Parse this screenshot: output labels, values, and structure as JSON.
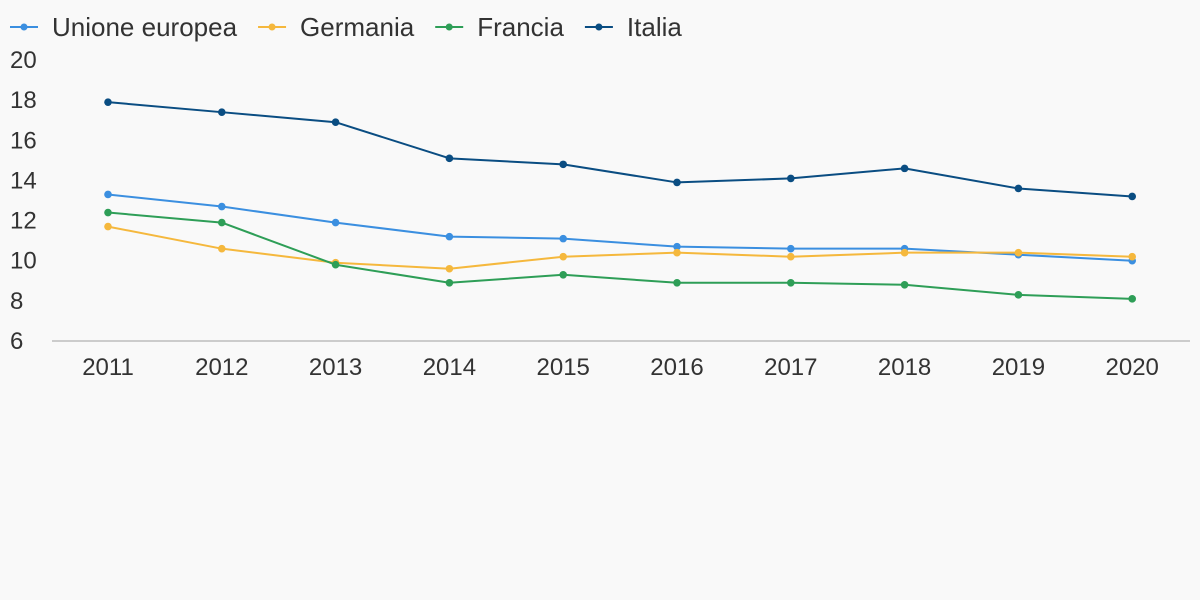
{
  "colors": {
    "background": "#f9f9f9",
    "axis": "#cccccc",
    "text": "#333333"
  },
  "chart_data": {
    "type": "line",
    "title": "",
    "xlabel": "",
    "ylabel": "",
    "categories": [
      "2011",
      "2012",
      "2013",
      "2014",
      "2015",
      "2016",
      "2017",
      "2018",
      "2019",
      "2020"
    ],
    "ylim": [
      6,
      20
    ],
    "yticks": [
      6,
      8,
      10,
      12,
      14,
      16,
      18,
      20
    ],
    "grid": false,
    "legend_position": "top-left",
    "series": [
      {
        "name": "Unione europea",
        "color": "#3b8fe0",
        "values": [
          13.3,
          12.7,
          11.9,
          11.2,
          11.1,
          10.7,
          10.6,
          10.6,
          10.3,
          10.0
        ]
      },
      {
        "name": "Germania",
        "color": "#f5b83d",
        "values": [
          11.7,
          10.6,
          9.9,
          9.6,
          10.2,
          10.4,
          10.2,
          10.4,
          10.4,
          10.2
        ]
      },
      {
        "name": "Francia",
        "color": "#2e9e57",
        "values": [
          12.4,
          11.9,
          9.8,
          8.9,
          9.3,
          8.9,
          8.9,
          8.8,
          8.3,
          8.1
        ]
      },
      {
        "name": "Italia",
        "color": "#0a4d82",
        "values": [
          17.9,
          17.4,
          16.9,
          15.1,
          14.8,
          13.9,
          14.1,
          14.6,
          13.6,
          13.2
        ]
      }
    ]
  }
}
